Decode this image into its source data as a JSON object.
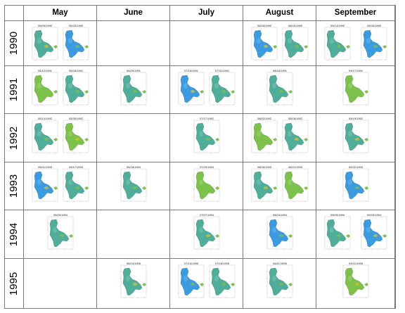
{
  "header": {
    "months": [
      "May",
      "June",
      "July",
      "August",
      "September"
    ]
  },
  "rows": [
    {
      "year": "1990",
      "cells": [
        [
          "05/09/1990",
          "05/25/1990"
        ],
        [],
        [],
        [
          "08/28/1990",
          "08/29/1990"
        ],
        [
          "09/14/1990",
          "09/30/1990"
        ]
      ]
    },
    {
      "year": "1991",
      "cells": [
        [
          "05/12/1991",
          "05/28/1991"
        ],
        [
          "06/29/1991"
        ],
        [
          "07/15/1991",
          "07/31/1991"
        ],
        [
          "08/16/1991"
        ],
        [
          "09/17/1991"
        ]
      ]
    },
    {
      "year": "1992",
      "cells": [
        [
          "05/14/1992",
          "05/30/1992"
        ],
        [],
        [
          "07/17/1992"
        ],
        [
          "08/02/1992",
          "08/18/1992"
        ],
        [
          "09/19/1992"
        ]
      ]
    },
    {
      "year": "1993",
      "cells": [
        [
          "05/01/1993",
          "05/17/1993"
        ],
        [
          "06/18/1993"
        ],
        [
          "07/20/1993"
        ],
        [
          "08/05/1993",
          "08/21/1993"
        ],
        [
          "09/22/1993"
        ]
      ]
    },
    {
      "year": "1994",
      "cells": [
        [
          "05/20/1994"
        ],
        [],
        [
          "07/07/1994"
        ],
        [
          "08/24/1994"
        ],
        [
          "09/09/1994",
          "09/25/1994"
        ]
      ]
    },
    {
      "year": "1995",
      "cells": [
        [],
        [
          "06/24/1995"
        ],
        [
          "07/10/1995",
          "07/26/1995"
        ],
        [
          "08/11/1995"
        ],
        [
          "09/12/1995"
        ]
      ]
    }
  ],
  "colors": {
    "water_blue": "#3a9be0",
    "water_teal": "#4fae9a",
    "water_green": "#7cc24a",
    "water_yellow": "#d8c32c",
    "grid_line": "#7a7a7a"
  }
}
